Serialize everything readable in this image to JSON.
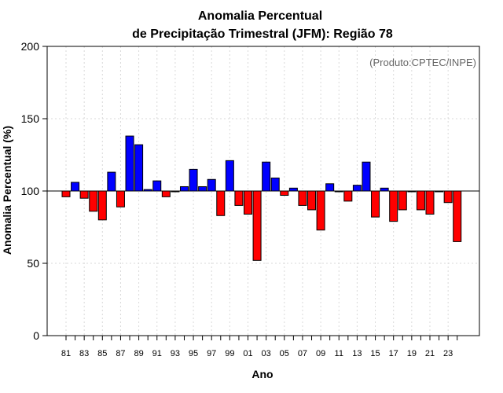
{
  "chart_data": {
    "type": "bar",
    "title_line1": "Anomalia Percentual",
    "title_line2": "de Precipitação Trimestral (JFM): Região 78",
    "xlabel": "Ano",
    "ylabel": "Anomalia Percentual (%)",
    "credit": "(Produto:CPTEC/INPE)",
    "ylim": [
      0,
      200
    ],
    "yticks": [
      0,
      50,
      100,
      150,
      200
    ],
    "baseline": 100,
    "grid": true,
    "colors": {
      "above": "#0000ff",
      "below": "#ff0000",
      "outline": "#000000"
    },
    "categories": [
      "1981",
      "1982",
      "1983",
      "1984",
      "1985",
      "1986",
      "1987",
      "1988",
      "1989",
      "1990",
      "1991",
      "1992",
      "1993",
      "1994",
      "1995",
      "1996",
      "1997",
      "1998",
      "1999",
      "2000",
      "2001",
      "2002",
      "2003",
      "2004",
      "2005",
      "2006",
      "2007",
      "2008",
      "2009",
      "2010",
      "2011",
      "2012",
      "2013",
      "2014",
      "2015",
      "2016",
      "2017",
      "2018",
      "2019",
      "2020",
      "2021",
      "2022",
      "2023",
      "2024"
    ],
    "xtick_labels": [
      "81",
      "",
      "83",
      "",
      "85",
      "",
      "87",
      "",
      "89",
      "",
      "91",
      "",
      "93",
      "",
      "95",
      "",
      "97",
      "",
      "99",
      "",
      "01",
      "",
      "03",
      "",
      "05",
      "",
      "07",
      "",
      "09",
      "",
      "11",
      "",
      "13",
      "",
      "15",
      "",
      "17",
      "",
      "19",
      "",
      "21",
      "",
      "23",
      ""
    ],
    "values": [
      96,
      106,
      95,
      86,
      80,
      113,
      89,
      138,
      132,
      101,
      107,
      96,
      100,
      103,
      115,
      103,
      108,
      83,
      121,
      90,
      84,
      52,
      120,
      109,
      97,
      102,
      90,
      87,
      73,
      105,
      100,
      93,
      104,
      120,
      82,
      102,
      79,
      87,
      100,
      87,
      84,
      100,
      92,
      65
    ]
  }
}
